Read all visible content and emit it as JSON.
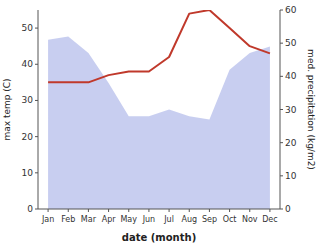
{
  "chart_data": {
    "type": "line",
    "categories": [
      "Jan",
      "Feb",
      "Mar",
      "Apr",
      "May",
      "Jun",
      "Jul",
      "Aug",
      "Sep",
      "Oct",
      "Nov",
      "Dec"
    ],
    "xlabel": "date (month)",
    "ylabel": "max temp (C)",
    "y2label": "med. precipitation (kg/m2)",
    "ylim": [
      0,
      55
    ],
    "yticks": [
      0,
      10,
      20,
      30,
      40,
      50
    ],
    "y2lim": [
      0,
      60
    ],
    "y2ticks": [
      0,
      10,
      20,
      30,
      40,
      50,
      60
    ],
    "grid": false,
    "series": [
      {
        "type": "area",
        "axis": "y2",
        "color": "#aab4e8",
        "values": [
          51,
          52,
          47,
          38,
          28,
          28,
          30,
          28,
          27,
          42,
          47,
          49
        ]
      },
      {
        "type": "line",
        "color": "#c0392b",
        "values": [
          35,
          35,
          35,
          37,
          38,
          38,
          42,
          54,
          55,
          50,
          45,
          43
        ]
      }
    ]
  }
}
